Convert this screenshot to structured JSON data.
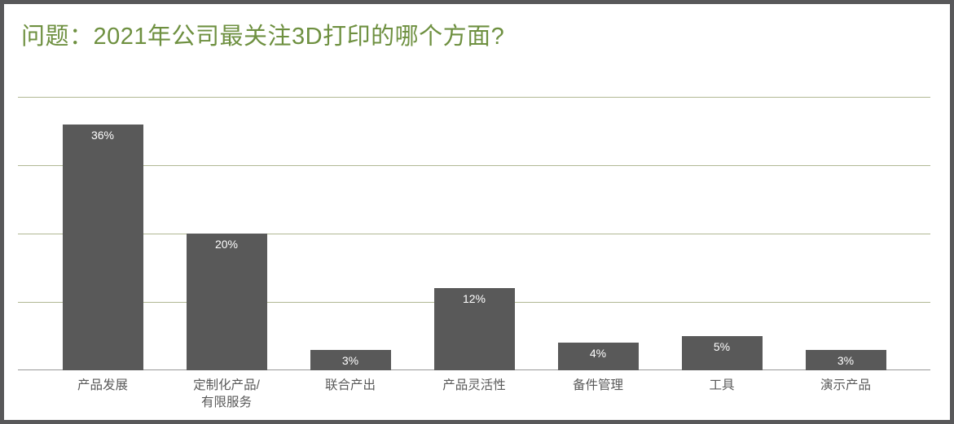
{
  "window": {
    "background_color": "#ffffff",
    "frame_border_color": "#58585a"
  },
  "chart_data": {
    "type": "bar",
    "title": "问题：2021年公司最关注3D打印的哪个方面?",
    "categories": [
      "产品发展",
      "定制化产品/\n有限服务",
      "联合产出",
      "产品灵活性",
      "备件管理",
      "工具",
      "演示产品"
    ],
    "values": [
      36,
      20,
      3,
      12,
      4,
      5,
      3
    ],
    "value_labels": [
      "36%",
      "20%",
      "3%",
      "12%",
      "4%",
      "5%",
      "3%"
    ],
    "xlabel": "",
    "ylabel": "",
    "ylim": [
      0,
      40
    ],
    "grid": true,
    "gridline_values": [
      10,
      20,
      30,
      40
    ],
    "legend_position": "none",
    "colors": {
      "bar": "#595959",
      "title": "#6e9040",
      "gridline": "#b1b894",
      "baseline": "#999999",
      "value_label": "#ffffff",
      "category_label": "#595959"
    }
  }
}
